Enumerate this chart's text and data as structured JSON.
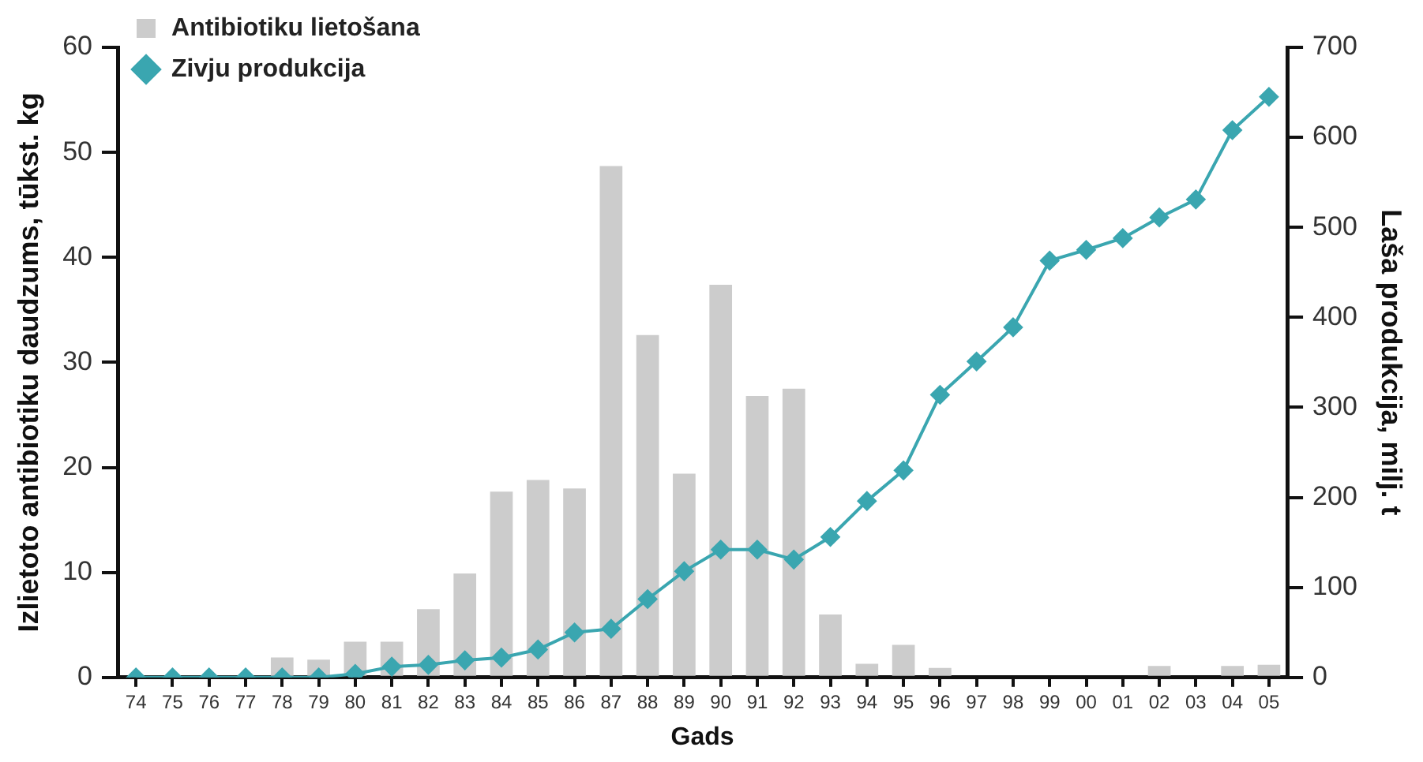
{
  "chart_data": {
    "type": "bar",
    "xlabel": "Gads",
    "ylabel": "Izlietoto antibiotiku daudzums, tūkst. kg",
    "y2label": "Laša produkcija, milj. t",
    "categories": [
      "74",
      "75",
      "76",
      "77",
      "78",
      "79",
      "80",
      "81",
      "82",
      "83",
      "84",
      "85",
      "86",
      "87",
      "88",
      "89",
      "90",
      "91",
      "92",
      "93",
      "94",
      "95",
      "96",
      "97",
      "98",
      "99",
      "00",
      "01",
      "02",
      "03",
      "04",
      "05"
    ],
    "series": [
      {
        "name": "Antibiotiku lietošana",
        "color": "#cccccc",
        "values": [
          0,
          0,
          0,
          0,
          1.9,
          1.7,
          3.4,
          3.4,
          6.5,
          9.9,
          17.7,
          18.8,
          18.0,
          48.7,
          32.6,
          19.4,
          37.4,
          26.8,
          27.5,
          6.0,
          1.3,
          3.1,
          0.9,
          0,
          0,
          0,
          0,
          0,
          1.1,
          0,
          1.1,
          1.2
        ]
      },
      {
        "name": "Zivju produkcija",
        "type": "line",
        "axis": "y2",
        "color": "#3aa6b0",
        "values": [
          0,
          0,
          0,
          0,
          0,
          0,
          4,
          12,
          14,
          19,
          22,
          31,
          50,
          54,
          87,
          118,
          142,
          142,
          131,
          156,
          196,
          230,
          314,
          351,
          389,
          463,
          475,
          488,
          511,
          531,
          608,
          645
        ]
      }
    ],
    "ylim": [
      0,
      60
    ],
    "yticks": [
      0,
      10,
      20,
      30,
      40,
      50,
      60
    ],
    "y2lim": [
      0,
      700
    ],
    "y2ticks": [
      0,
      100,
      200,
      300,
      400,
      500,
      600,
      700
    ],
    "grid": false,
    "legend": "top left",
    "marker": "diamond",
    "line_style": "solid"
  }
}
